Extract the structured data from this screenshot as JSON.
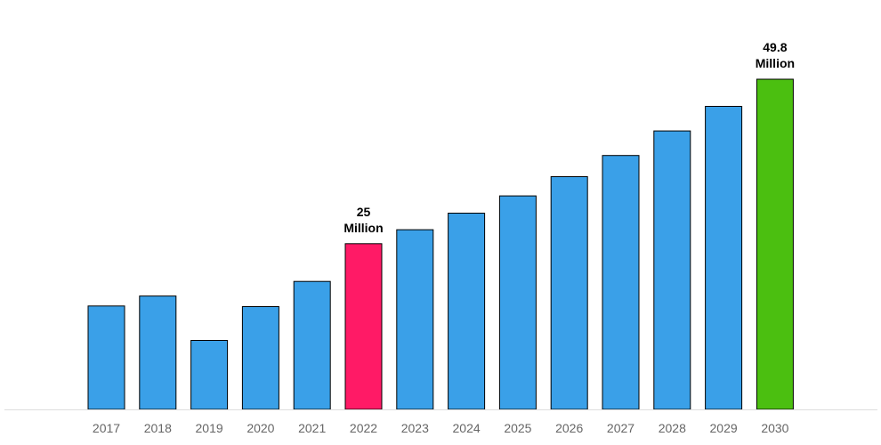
{
  "chart_data": {
    "type": "bar",
    "title": "",
    "xlabel": "",
    "ylabel": "",
    "categories": [
      "2017",
      "2018",
      "2019",
      "2020",
      "2021",
      "2022",
      "2023",
      "2024",
      "2025",
      "2026",
      "2027",
      "2028",
      "2029",
      "2030"
    ],
    "values": [
      15.6,
      17.1,
      10.4,
      15.5,
      19.3,
      25.0,
      27.1,
      29.6,
      32.2,
      35.1,
      38.3,
      42.0,
      45.7,
      49.8
    ],
    "ylim": [
      0,
      49.8
    ],
    "grid": false,
    "legend": "none",
    "bar_colors": [
      "#3aa0e8",
      "#3aa0e8",
      "#3aa0e8",
      "#3aa0e8",
      "#3aa0e8",
      "#ff1a66",
      "#3aa0e8",
      "#3aa0e8",
      "#3aa0e8",
      "#3aa0e8",
      "#3aa0e8",
      "#3aa0e8",
      "#3aa0e8",
      "#4bbf10"
    ],
    "bar_stroke": "#000000",
    "baseline_color": "#dddddd",
    "data_labels": [
      {
        "category": "2022",
        "lines": [
          "25",
          "Million"
        ]
      },
      {
        "category": "2030",
        "lines": [
          "49.8",
          "Million"
        ]
      }
    ]
  }
}
